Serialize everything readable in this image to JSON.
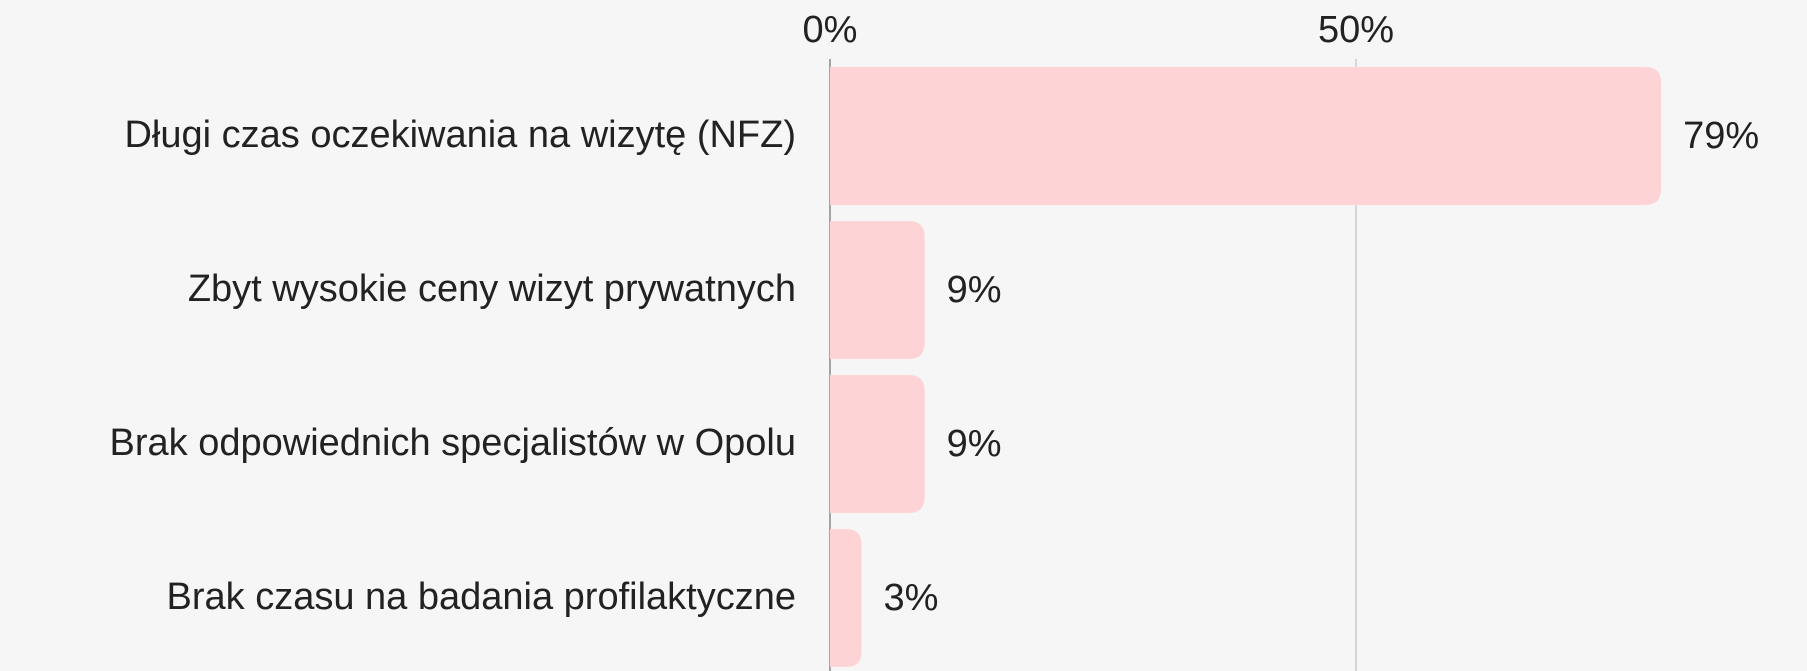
{
  "chart_data": {
    "type": "bar",
    "orientation": "horizontal",
    "categories": [
      "Długi czas oczekiwania na wizytę (NFZ)",
      "Zbyt wysokie ceny wizyt prywatnych",
      "Brak odpowiednich specjalistów w Opolu",
      "Brak czasu na badania profilaktyczne"
    ],
    "values": [
      79,
      9,
      9,
      3
    ],
    "value_labels": [
      "79%",
      "9%",
      "9%",
      "3%"
    ],
    "color": "#fdd3d5",
    "xlim": [
      0,
      85
    ],
    "xticks": [
      {
        "value": 0,
        "label": "0%"
      },
      {
        "value": 50,
        "label": "50%"
      }
    ],
    "grid": true
  }
}
